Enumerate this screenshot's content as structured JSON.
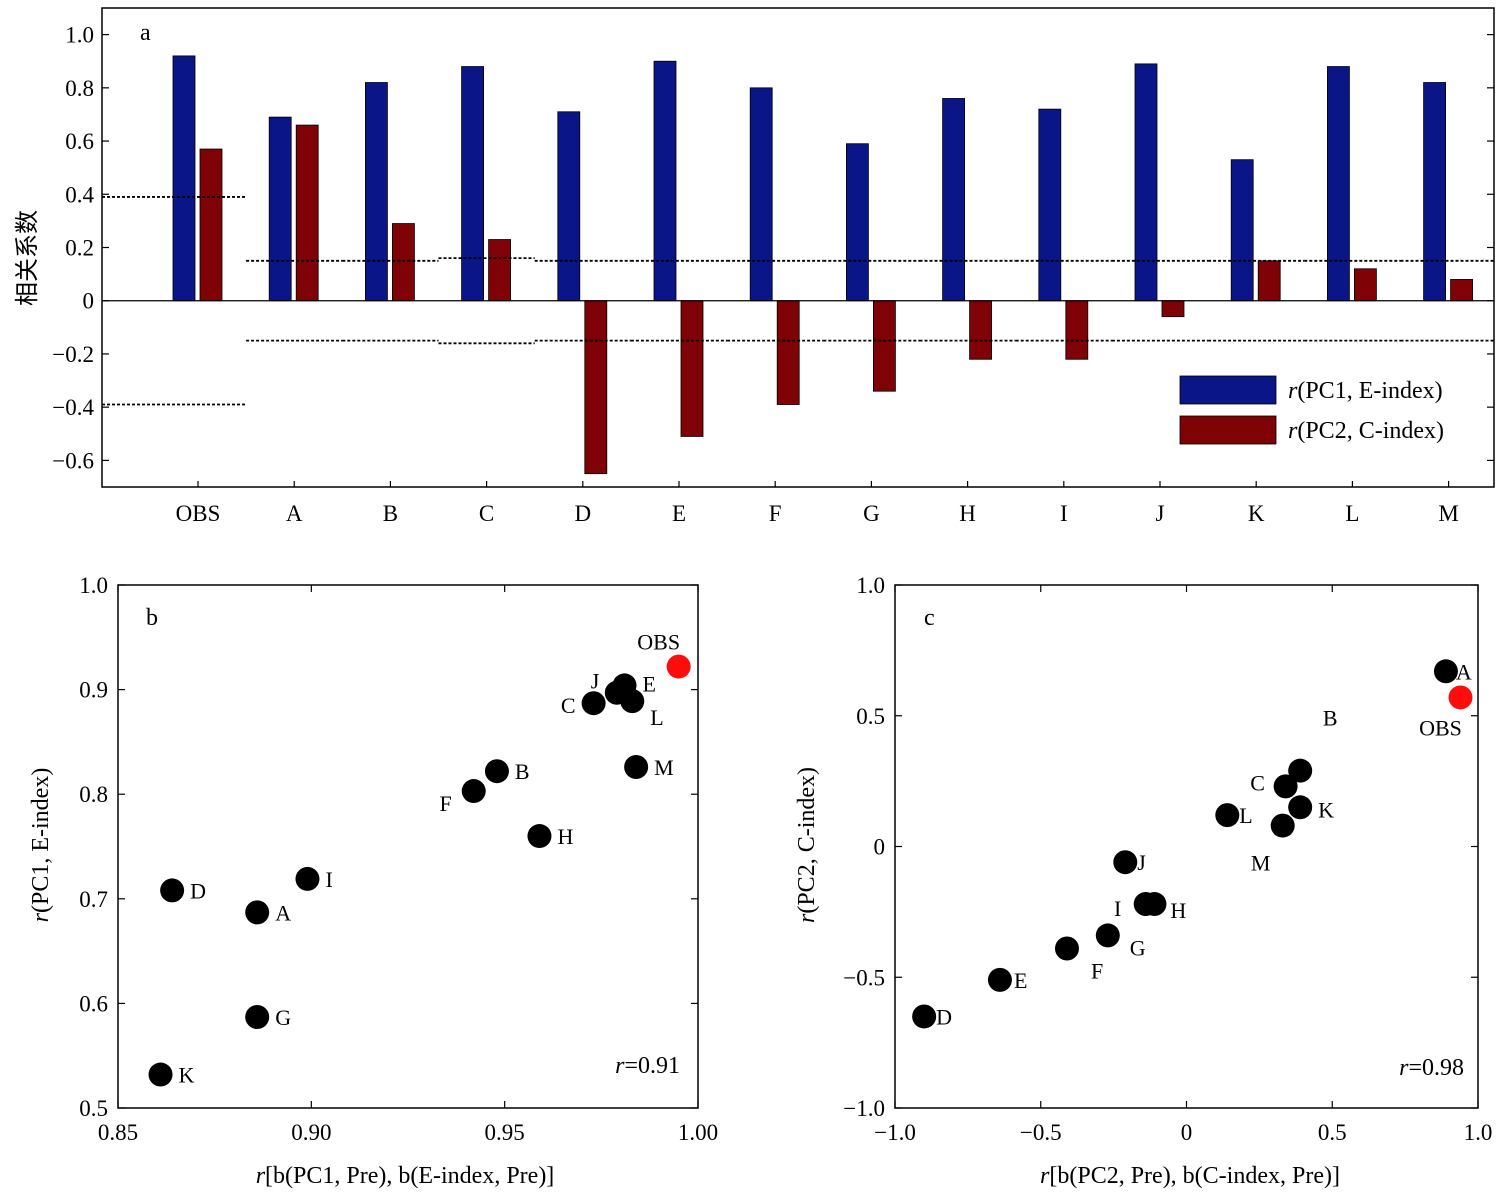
{
  "chart_data": [
    {
      "panel": "a",
      "type": "bar",
      "ylabel": "相关系数",
      "ylim": [
        -0.7,
        1.1
      ],
      "yticks": [
        "1.0",
        "0.8",
        "0.6",
        "0.4",
        "0.2",
        "0",
        "−0.2",
        "−0.4",
        "−0.6"
      ],
      "categories": [
        "OBS",
        "A",
        "B",
        "C",
        "D",
        "E",
        "F",
        "G",
        "H",
        "I",
        "J",
        "K",
        "L",
        "M"
      ],
      "series": [
        {
          "name_prefix": "r",
          "name_rest": "(PC1, E-index)",
          "color": "#0a1587",
          "values": [
            0.92,
            0.69,
            0.82,
            0.88,
            0.71,
            0.9,
            0.8,
            0.59,
            0.76,
            0.72,
            0.89,
            0.53,
            0.88,
            0.82
          ]
        },
        {
          "name_prefix": "r",
          "name_rest": "(PC2, C-index)",
          "color": "#7f0306",
          "values": [
            0.57,
            0.66,
            0.29,
            0.23,
            -0.65,
            -0.51,
            -0.39,
            -0.34,
            -0.22,
            -0.22,
            -0.06,
            0.15,
            0.12,
            0.08
          ]
        }
      ],
      "significance_levels": [
        0.39,
        0.15,
        0.15,
        0.16,
        0.15,
        0.15,
        0.15,
        0.15,
        0.15,
        0.15,
        0.15,
        0.15,
        0.15,
        0.15
      ]
    },
    {
      "panel": "b",
      "type": "scatter",
      "xlabel": "r[b(PC1, Pre), b(E-index, Pre)]",
      "ylabel": "r(PC1, E-index)",
      "xlim": [
        0.85,
        1.0
      ],
      "ylim": [
        0.5,
        1.0
      ],
      "xticks": [
        "0.85",
        "0.90",
        "0.95",
        "1.00"
      ],
      "yticks": [
        "0.5",
        "0.6",
        "0.7",
        "0.8",
        "0.9",
        "1.0"
      ],
      "annotation": {
        "var": "r",
        "text": "=0.91"
      },
      "points": [
        {
          "label": "OBS",
          "x": 0.995,
          "y": 0.922,
          "highlight": true
        },
        {
          "label": "A",
          "x": 0.886,
          "y": 0.687
        },
        {
          "label": "B",
          "x": 0.948,
          "y": 0.822
        },
        {
          "label": "C",
          "x": 0.973,
          "y": 0.887
        },
        {
          "label": "D",
          "x": 0.864,
          "y": 0.708
        },
        {
          "label": "E",
          "x": 0.981,
          "y": 0.904
        },
        {
          "label": "F",
          "x": 0.942,
          "y": 0.803
        },
        {
          "label": "G",
          "x": 0.886,
          "y": 0.587
        },
        {
          "label": "H",
          "x": 0.959,
          "y": 0.76
        },
        {
          "label": "I",
          "x": 0.899,
          "y": 0.719
        },
        {
          "label": "J",
          "x": 0.979,
          "y": 0.897
        },
        {
          "label": "K",
          "x": 0.861,
          "y": 0.532
        },
        {
          "label": "L",
          "x": 0.983,
          "y": 0.889
        },
        {
          "label": "M",
          "x": 0.984,
          "y": 0.826
        }
      ]
    },
    {
      "panel": "c",
      "type": "scatter",
      "xlabel": "r[b(PC2, Pre), b(C-index, Pre)]",
      "ylabel": "r(PC2, C-index)",
      "xlim": [
        -1.0,
        1.0
      ],
      "ylim": [
        -1.0,
        1.0
      ],
      "xticks": [
        "−1.0",
        "−0.5",
        "0",
        "0.5",
        "1.0"
      ],
      "yticks": [
        "−1.0",
        "−0.5",
        "0",
        "0.5",
        "1.0"
      ],
      "annotation": {
        "var": "r",
        "text": "=0.98"
      },
      "points": [
        {
          "label": "OBS",
          "x": 0.94,
          "y": 0.57,
          "highlight": true
        },
        {
          "label": "A",
          "x": 0.89,
          "y": 0.67
        },
        {
          "label": "B",
          "x": 0.39,
          "y": 0.29
        },
        {
          "label": "C",
          "x": 0.34,
          "y": 0.23
        },
        {
          "label": "D",
          "x": -0.9,
          "y": -0.65
        },
        {
          "label": "E",
          "x": -0.64,
          "y": -0.51
        },
        {
          "label": "F",
          "x": -0.41,
          "y": -0.39
        },
        {
          "label": "G",
          "x": -0.27,
          "y": -0.34
        },
        {
          "label": "H",
          "x": -0.11,
          "y": -0.22
        },
        {
          "label": "I",
          "x": -0.14,
          "y": -0.22
        },
        {
          "label": "J",
          "x": -0.21,
          "y": -0.06
        },
        {
          "label": "K",
          "x": 0.39,
          "y": 0.15
        },
        {
          "label": "L",
          "x": 0.14,
          "y": 0.12
        },
        {
          "label": "M",
          "x": 0.33,
          "y": 0.08
        }
      ]
    }
  ]
}
